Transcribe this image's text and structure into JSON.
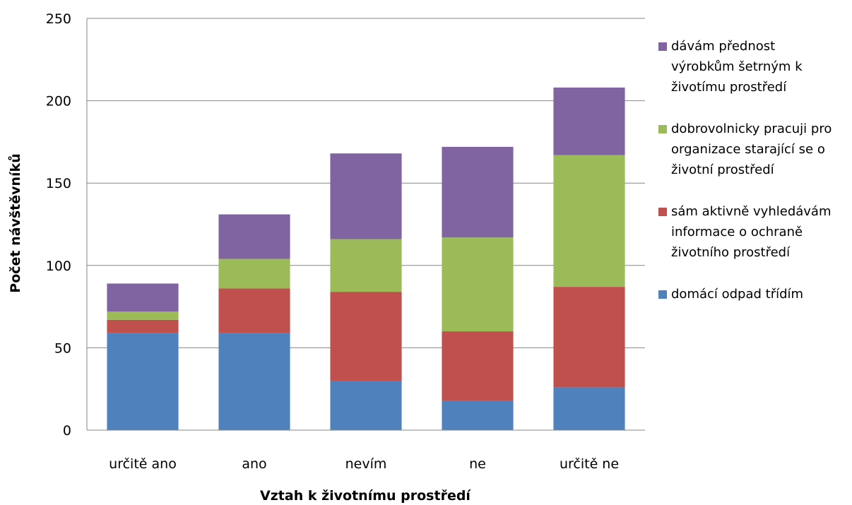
{
  "chart_data": {
    "type": "bar",
    "stacked": true,
    "categories": [
      "určitě ano",
      "ano",
      "nevím",
      "ne",
      "určitě ne"
    ],
    "series": [
      {
        "name": "domácí odpad třídím",
        "color": "#4F81BD",
        "values": [
          59,
          59,
          30,
          18,
          26
        ]
      },
      {
        "name": "sám aktivně vyhledávám informace o ochraně životního prostředí",
        "legend_lines": [
          "sám aktivně vyhledávám",
          "informace o ochraně",
          "životního prostředí"
        ],
        "color": "#C0504D",
        "values": [
          8,
          27,
          54,
          42,
          61
        ]
      },
      {
        "name": "dobrovolnicky pracuji pro organizace starající se o životní prostředí",
        "legend_lines": [
          "dobrovolnicky pracuji pro",
          "organizace starající se o",
          "životní prostředí"
        ],
        "color": "#9BBB59",
        "values": [
          5,
          18,
          32,
          57,
          80
        ]
      },
      {
        "name": "dávám přednost výrobkům šetrným k životímu prostředí",
        "legend_lines": [
          "dávám přednost",
          "výrobkům šetrným k",
          "životímu prostředí"
        ],
        "color": "#8064A2",
        "values": [
          17,
          27,
          52,
          55,
          41
        ]
      }
    ],
    "xlabel": "Vztah k životnímu prostředí",
    "ylabel": "Počet návštěvníků",
    "ylim": [
      0,
      250
    ],
    "yticks": [
      0,
      50,
      100,
      150,
      200,
      250
    ],
    "grid": true,
    "legend_position": "right"
  }
}
